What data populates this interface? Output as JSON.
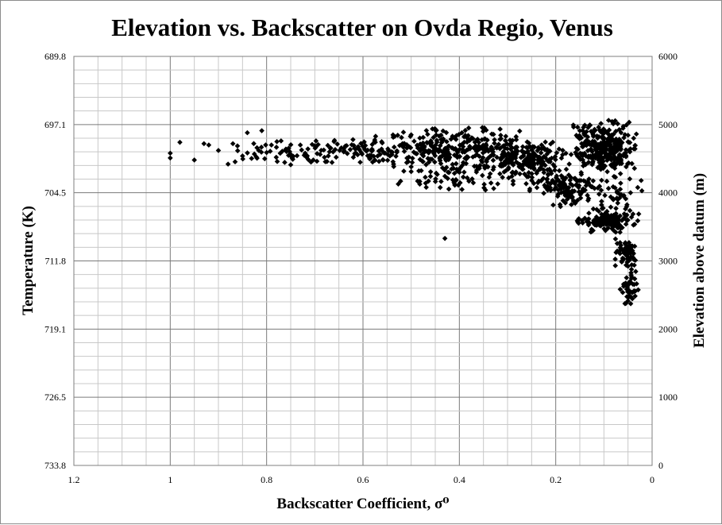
{
  "chart_data": {
    "type": "scatter",
    "title": "Elevation vs. Backscatter on Ovda Regio, Venus",
    "xlabel": "Backscatter Coefficient, σ⁰",
    "ylabel_left": "Temperature (K)",
    "ylabel_right": "Elevation above datum (m)",
    "x_reversed": true,
    "xlim": [
      0,
      1.2
    ],
    "ylim_right": [
      0,
      6000
    ],
    "ylim_left": [
      733.8,
      689.8
    ],
    "x_ticks": [
      "1.2",
      "1",
      "0.8",
      "0.6",
      "0.4",
      "0.2",
      "0"
    ],
    "y_ticks_left": [
      "689.8",
      "697.1",
      "704.5",
      "711.8",
      "719.1",
      "726.5",
      "733.8"
    ],
    "y_ticks_right": [
      "6000",
      "5000",
      "4000",
      "3000",
      "2000",
      "1000",
      "0"
    ],
    "grid": true,
    "legend": "none",
    "marker": "diamond",
    "marker_color": "#000000",
    "series": [
      {
        "name": "",
        "points": [
          [
            1.0,
            4580
          ],
          [
            1.0,
            4510
          ],
          [
            0.98,
            4740
          ],
          [
            0.95,
            4480
          ],
          [
            0.93,
            4720
          ],
          [
            0.92,
            4700
          ],
          [
            0.9,
            4620
          ],
          [
            0.88,
            4420
          ],
          [
            0.87,
            4720
          ],
          [
            0.85,
            4540
          ],
          [
            0.84,
            4880
          ],
          [
            0.82,
            4660
          ],
          [
            0.81,
            4910
          ],
          [
            0.8,
            4590
          ],
          [
            0.79,
            4700
          ],
          [
            0.78,
            4520
          ],
          [
            0.77,
            4760
          ],
          [
            0.76,
            4640
          ],
          [
            0.75,
            4410
          ],
          [
            0.73,
            4700
          ],
          [
            0.72,
            4580
          ],
          [
            0.7,
            4690
          ],
          [
            0.68,
            4520
          ],
          [
            0.66,
            4750
          ],
          [
            0.64,
            4600
          ],
          [
            0.62,
            4520
          ],
          [
            0.6,
            4680
          ],
          [
            0.58,
            4450
          ],
          [
            0.56,
            4730
          ],
          [
            0.54,
            4560
          ],
          [
            0.52,
            4810
          ],
          [
            0.5,
            4380
          ],
          [
            0.48,
            4700
          ],
          [
            0.46,
            4240
          ],
          [
            0.44,
            4620
          ],
          [
            0.42,
            4520
          ],
          [
            0.4,
            4300
          ],
          [
            0.43,
            3330
          ],
          [
            0.5,
            4310
          ],
          [
            0.47,
            4140
          ]
        ],
        "cloud": [
          {
            "x": [
              0.3,
              0.9
            ],
            "y": [
              4400,
              4820
            ],
            "n": 170
          },
          {
            "x": [
              0.2,
              0.6
            ],
            "y": [
              4300,
              4980
            ],
            "n": 280
          },
          {
            "x": [
              0.15,
              0.35
            ],
            "y": [
              4150,
              4780
            ],
            "n": 170
          },
          {
            "x": [
              0.26,
              0.55
            ],
            "y": [
              4000,
              4400
            ],
            "n": 60
          },
          {
            "x": [
              0.1,
              0.27
            ],
            "y": [
              3950,
              4300
            ],
            "n": 90
          },
          {
            "x": [
              0.12,
              0.21
            ],
            "y": [
              3750,
              4050
            ],
            "n": 30
          },
          {
            "x": [
              0.03,
              0.17
            ],
            "y": [
              4300,
              5080
            ],
            "n": 300
          },
          {
            "x": [
              0.02,
              0.16
            ],
            "y": [
              3380,
              3800
            ],
            "n": 110
          },
          {
            "x": [
              0.06,
              0.12
            ],
            "y": [
              3480,
              3690
            ],
            "n": 70
          },
          {
            "x": [
              0.03,
              0.08
            ],
            "y": [
              2850,
              3350
            ],
            "n": 70
          },
          {
            "x": [
              0.02,
              0.07
            ],
            "y": [
              2320,
              2900
            ],
            "n": 45
          },
          {
            "x": [
              0.02,
              0.12
            ],
            "y": [
              3750,
              4300
            ],
            "n": 40
          }
        ]
      }
    ]
  }
}
